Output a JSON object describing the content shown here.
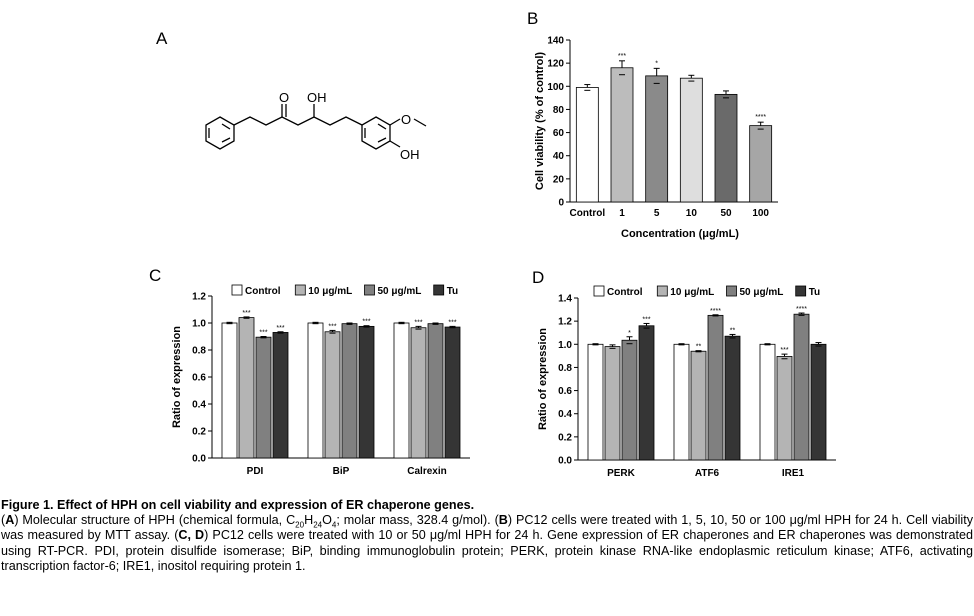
{
  "panel_labels": {
    "A": "A",
    "B": "B",
    "C": "C",
    "D": "D"
  },
  "molecule": {
    "atom_labels": {
      "ketone": "O",
      "hydroxyl": "OH",
      "methoxy": "O",
      "phenol": "OH"
    }
  },
  "chart_data": [
    {
      "panel": "B",
      "type": "bar",
      "title": "",
      "xlabel": "Concentration (μg/mL)",
      "ylabel": "Cell viability (% of control)",
      "ylim": [
        0,
        140
      ],
      "yticks": [
        0,
        20,
        40,
        60,
        80,
        100,
        120,
        140
      ],
      "categories": [
        "Control",
        "1",
        "5",
        "10",
        "50",
        "100"
      ],
      "values": [
        99,
        116,
        109,
        107,
        93,
        66
      ],
      "errors": [
        2.5,
        6,
        6.5,
        2.5,
        3,
        3
      ],
      "significance": [
        "",
        "***",
        "*",
        "",
        "",
        "****"
      ],
      "colors": [
        "#ffffff",
        "#bcbcbc",
        "#8a8a8a",
        "#dedede",
        "#6a6a6a",
        "#a6a6a6"
      ]
    },
    {
      "panel": "C",
      "type": "bar",
      "title": "",
      "xlabel": "",
      "ylabel": "Ratio of expression",
      "ylim": [
        0,
        1.2
      ],
      "yticks": [
        "0.0",
        "0.2",
        "0.4",
        "0.6",
        "0.8",
        "1.0",
        "1.2"
      ],
      "categories": [
        "PDI",
        "BiP",
        "Calrexin"
      ],
      "series": [
        {
          "name": "Control",
          "color": "#ffffff",
          "values": [
            1.0,
            1.0,
            1.0
          ],
          "errors": [
            0.005,
            0.005,
            0.005
          ],
          "significance": [
            "",
            "",
            ""
          ]
        },
        {
          "name": "10 μg/mL",
          "color": "#b4b4b4",
          "values": [
            1.04,
            0.935,
            0.965
          ],
          "errors": [
            0.005,
            0.01,
            0.01
          ],
          "significance": [
            "***",
            "***",
            "***"
          ]
        },
        {
          "name": "50 μg/mL",
          "color": "#808080",
          "values": [
            0.895,
            0.995,
            0.995
          ],
          "errors": [
            0.005,
            0.005,
            0.005
          ],
          "significance": [
            "***",
            "",
            ""
          ]
        },
        {
          "name": "Tu",
          "color": "#353535",
          "values": [
            0.93,
            0.975,
            0.97
          ],
          "errors": [
            0.005,
            0.005,
            0.005
          ],
          "significance": [
            "***",
            "***",
            "***"
          ]
        }
      ]
    },
    {
      "panel": "D",
      "type": "bar",
      "title": "",
      "xlabel": "",
      "ylabel": "Ratio of expression",
      "ylim": [
        0,
        1.4
      ],
      "yticks": [
        "0.0",
        "0.2",
        "0.4",
        "0.6",
        "0.8",
        "1.0",
        "1.2",
        "1.4"
      ],
      "categories": [
        "PERK",
        "ATF6",
        "IRE1"
      ],
      "series": [
        {
          "name": "Control",
          "color": "#ffffff",
          "values": [
            1.0,
            1.0,
            1.0
          ],
          "errors": [
            0.005,
            0.005,
            0.005
          ],
          "significance": [
            "",
            "",
            ""
          ]
        },
        {
          "name": "10 μg/mL",
          "color": "#b4b4b4",
          "values": [
            0.98,
            0.94,
            0.895
          ],
          "errors": [
            0.015,
            0.005,
            0.02
          ],
          "significance": [
            "",
            "**",
            "***"
          ]
        },
        {
          "name": "50 μg/mL",
          "color": "#808080",
          "values": [
            1.035,
            1.25,
            1.26
          ],
          "errors": [
            0.03,
            0.005,
            0.01
          ],
          "significance": [
            "*",
            "****",
            "****"
          ]
        },
        {
          "name": "Tu",
          "color": "#353535",
          "values": [
            1.16,
            1.07,
            1.0
          ],
          "errors": [
            0.02,
            0.015,
            0.015
          ],
          "significance": [
            "***",
            "**",
            ""
          ]
        }
      ]
    }
  ],
  "caption": {
    "title": "Figure 1. Effect of HPH on cell viability and expression of ER chaperone genes.",
    "text_a1": "(",
    "a_bold": "A",
    "text_a2": ") Molecular structure of HPH (chemical formula, C",
    "sub_c": "20",
    "text_h": "H",
    "sub_h": "24",
    "text_o": "O",
    "sub_o": "4",
    "text_b1": "; molar mass, 328.4 g/mol). (",
    "b_bold": "B",
    "text_b2": ") PC12 cells were treated with 1, 5, 10, 50 or 100 μg/ml HPH for 24 h. Cell viability was measured by MTT assay. (",
    "cd_bold": "C, D",
    "text_rest": ") PC12 cells were treated with 10 or 50 μg/ml HPH for 24 h. Gene expression of ER chaperones and ER chaperones was demonstrated using RT-PCR. PDI, protein disulfide isomerase; BiP, binding immunoglobulin protein; PERK, protein kinase RNA-like endoplasmic reticulum kinase; ATF6, activating transcription factor-6; IRE1, inositol requiring protein 1."
  }
}
